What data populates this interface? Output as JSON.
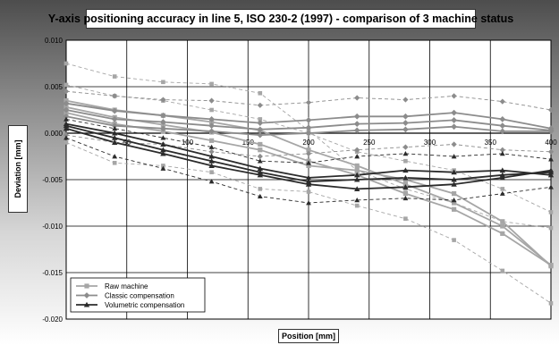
{
  "chart_data": {
    "type": "line",
    "title": "Y-axis positioning accuracy in line 5, ISO 230-2 (1997) - comparison of 3 machine status",
    "xlabel": "Position [mm]",
    "ylabel": "Deviation [mm]",
    "xlim": [
      0,
      400
    ],
    "ylim": [
      -0.02,
      0.01
    ],
    "x_ticks": [
      {
        "v": 50,
        "label": "50"
      },
      {
        "v": 100,
        "label": "100"
      },
      {
        "v": 150,
        "label": "150"
      },
      {
        "v": 200,
        "label": "200"
      },
      {
        "v": 250,
        "label": "250"
      },
      {
        "v": 300,
        "label": "300"
      },
      {
        "v": 350,
        "label": "350"
      },
      {
        "v": 400,
        "label": "400"
      }
    ],
    "y_ticks": [
      {
        "v": 0.01,
        "label": "0.010"
      },
      {
        "v": 0.005,
        "label": "0.005"
      },
      {
        "v": 0.0,
        "label": "0.000"
      },
      {
        "v": -0.005,
        "label": "-0.005"
      },
      {
        "v": -0.01,
        "label": "-0.010"
      },
      {
        "v": -0.015,
        "label": "-0.015"
      },
      {
        "v": -0.02,
        "label": "-0.020"
      }
    ],
    "grid": true,
    "legend_position": "bottom-left",
    "legend": [
      {
        "label": "Raw machine",
        "marker": "square",
        "color": "#a6a6a6"
      },
      {
        "label": "Classic compensation",
        "marker": "diamond",
        "color": "#8c8c8c"
      },
      {
        "label": "Volumetric compensation",
        "marker": "triangle",
        "color": "#2b2b2b"
      }
    ],
    "x": [
      0,
      40,
      80,
      120,
      160,
      200,
      240,
      280,
      320,
      360,
      400
    ],
    "series": [
      {
        "group": "raw",
        "style": "solid",
        "values": [
          0.0035,
          0.0025,
          0.0019,
          0.0012,
          0.0003,
          -0.0018,
          -0.0035,
          -0.0055,
          -0.0075,
          -0.01,
          -0.0142
        ]
      },
      {
        "group": "raw",
        "style": "solid",
        "values": [
          0.0028,
          0.0017,
          0.0009,
          0.0001,
          -0.0012,
          -0.003,
          -0.0045,
          -0.0065,
          -0.0082,
          -0.0108,
          -0.0142
        ]
      },
      {
        "group": "raw",
        "style": "solid",
        "values": [
          0.0022,
          0.001,
          0.0002,
          -0.0008,
          -0.0018,
          -0.0035,
          -0.004,
          -0.005,
          -0.0065,
          -0.0095,
          -0.0143
        ]
      },
      {
        "group": "raw",
        "style": "dashed",
        "values": [
          0.0075,
          0.0061,
          0.0055,
          0.0053,
          0.0043,
          0.0003,
          -0.004,
          -0.006,
          -0.0075,
          -0.0095,
          -0.0102
        ]
      },
      {
        "group": "raw",
        "style": "dashed",
        "values": [
          -0.001,
          -0.0032,
          -0.0035,
          -0.0042,
          -0.006,
          -0.0063,
          -0.0078,
          -0.0092,
          -0.0115,
          -0.0148,
          -0.0183
        ]
      },
      {
        "group": "raw",
        "style": "dashed",
        "values": [
          0.0052,
          0.004,
          0.0035,
          0.0025,
          0.0015,
          0.0,
          -0.002,
          -0.003,
          -0.004,
          -0.006,
          -0.0085
        ]
      },
      {
        "group": "classic",
        "style": "solid",
        "values": [
          0.0032,
          0.0024,
          0.0019,
          0.0015,
          0.0011,
          0.0014,
          0.0018,
          0.0018,
          0.0022,
          0.0015,
          0.0005
        ]
      },
      {
        "group": "classic",
        "style": "solid",
        "values": [
          0.0025,
          0.0015,
          0.0012,
          0.0008,
          0.0004,
          0.0006,
          0.001,
          0.0011,
          0.0014,
          0.0008,
          0.0003
        ]
      },
      {
        "group": "classic",
        "style": "solid",
        "values": [
          0.0018,
          0.0008,
          0.0005,
          0.0002,
          -0.0002,
          0.0,
          0.0003,
          0.0004,
          0.0007,
          0.0002,
          0.0002
        ]
      },
      {
        "group": "classic",
        "style": "dashed",
        "values": [
          0.0045,
          0.004,
          0.0036,
          0.0035,
          0.003,
          0.0033,
          0.0038,
          0.0036,
          0.004,
          0.0034,
          0.0025
        ]
      },
      {
        "group": "classic",
        "style": "dashed",
        "values": [
          -0.0002,
          -0.001,
          -0.0012,
          -0.002,
          -0.0025,
          -0.0022,
          -0.0018,
          -0.0015,
          -0.0012,
          -0.0018,
          -0.002
        ]
      },
      {
        "group": "volumetric",
        "style": "solid",
        "values": [
          0.001,
          0.0,
          -0.0012,
          -0.0025,
          -0.0038,
          -0.0048,
          -0.0045,
          -0.004,
          -0.0042,
          -0.004,
          -0.0045
        ]
      },
      {
        "group": "volumetric",
        "style": "solid",
        "values": [
          0.0008,
          -0.0005,
          -0.0018,
          -0.003,
          -0.0042,
          -0.0052,
          -0.005,
          -0.0048,
          -0.005,
          -0.0045,
          -0.0042
        ]
      },
      {
        "group": "volumetric",
        "style": "solid",
        "values": [
          0.0005,
          -0.001,
          -0.0022,
          -0.0035,
          -0.0045,
          -0.0055,
          -0.006,
          -0.0058,
          -0.0055,
          -0.0048,
          -0.004
        ]
      },
      {
        "group": "volumetric",
        "style": "dashed",
        "values": [
          0.0015,
          0.0005,
          -0.0005,
          -0.0015,
          -0.003,
          -0.0032,
          -0.0025,
          -0.0022,
          -0.0025,
          -0.0022,
          -0.0028
        ]
      },
      {
        "group": "volumetric",
        "style": "dashed",
        "values": [
          -0.0005,
          -0.0025,
          -0.0038,
          -0.0052,
          -0.0068,
          -0.0075,
          -0.0072,
          -0.007,
          -0.0072,
          -0.0065,
          -0.0058
        ]
      }
    ]
  },
  "colors": {
    "raw": "#a6a6a6",
    "classic": "#8c8c8c",
    "volumetric": "#2b2b2b",
    "grid": "#000000"
  }
}
